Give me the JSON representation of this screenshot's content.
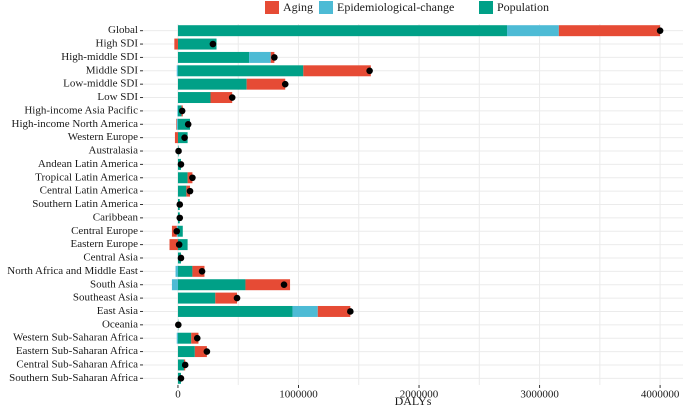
{
  "chart_data": {
    "type": "bar",
    "orientation": "horizontal",
    "stacked": true,
    "xlabel": "DALYs",
    "categories": [
      "Global",
      "High SDI",
      "High-middle SDI",
      "Middle SDI",
      "Low-middle SDI",
      "Low SDI",
      "High-income Asia Pacific",
      "High-income North America",
      "Western Europe",
      "Australasia",
      "Andean Latin America",
      "Tropical Latin America",
      "Central Latin America",
      "Southern Latin America",
      "Caribbean",
      "Central Europe",
      "Eastern Europe",
      "Central Asia",
      "North Africa and Middle East",
      "South Asia",
      "Southeast Asia",
      "East Asia",
      "Oceania",
      "Western Sub-Saharan Africa",
      "Eastern Sub-Saharan Africa",
      "Central Sub-Saharan Africa",
      "Southern Sub-Saharan Africa"
    ],
    "series": [
      {
        "name": "Aging",
        "color": "#e64b35",
        "values": [
          840000,
          -30000,
          30000,
          560000,
          320000,
          180000,
          10000,
          -5000,
          -25000,
          0,
          0,
          40000,
          30000,
          0,
          0,
          -40000,
          -70000,
          0,
          100000,
          370000,
          180000,
          270000,
          0,
          60000,
          100000,
          10000,
          0
        ]
      },
      {
        "name": "Epidemiological-change",
        "color": "#4dbbd5",
        "values": [
          430000,
          0,
          180000,
          -10000,
          0,
          0,
          -5000,
          -10000,
          0,
          0,
          0,
          0,
          0,
          0,
          0,
          -10000,
          0,
          0,
          -20000,
          -50000,
          0,
          210000,
          0,
          -10000,
          0,
          0,
          0
        ]
      },
      {
        "name": "Population",
        "color": "#00a087",
        "values": [
          2730000,
          320000,
          590000,
          1040000,
          570000,
          270000,
          30000,
          100000,
          80000,
          5000,
          25000,
          80000,
          70000,
          15000,
          15000,
          40000,
          80000,
          25000,
          120000,
          560000,
          310000,
          950000,
          3000,
          110000,
          140000,
          50000,
          25000
        ]
      }
    ],
    "xlim": [
      -290000,
      4190000
    ],
    "xticks": [
      0,
      1000000,
      2000000,
      3000000,
      4000000
    ],
    "grid": true,
    "legend": "top",
    "total_marker_color": "#000000"
  }
}
